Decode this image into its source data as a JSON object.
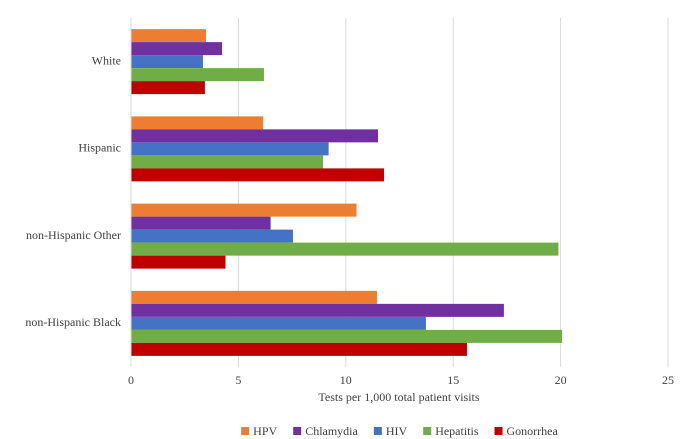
{
  "chart_data": {
    "type": "bar",
    "horizontal": true,
    "categories": [
      "White",
      "Hispanic",
      "non-Hispanic Other",
      "non-Hispanic Black"
    ],
    "series": [
      {
        "name": "HPV",
        "color": "#ed7d31",
        "values": [
          3.49,
          6.15,
          10.5,
          11.45
        ]
      },
      {
        "name": "Chlamydia",
        "color": "#7030a0",
        "values": [
          4.24,
          11.5,
          6.5,
          17.36
        ]
      },
      {
        "name": "HIV",
        "color": "#4472c4",
        "values": [
          3.35,
          9.2,
          7.54,
          13.73
        ]
      },
      {
        "name": "Hepatitis",
        "color": "#70ad47",
        "values": [
          6.19,
          8.94,
          19.9,
          20.07
        ]
      },
      {
        "name": "Gonorrhea",
        "color": "#c00000",
        "values": [
          3.44,
          11.78,
          4.4,
          15.64
        ]
      }
    ],
    "x_label": "Tests per 1,000 total patient visits",
    "xlim": [
      0,
      25
    ],
    "xticks": [
      0,
      5,
      10,
      15,
      20,
      25
    ],
    "grid": true,
    "legend": "bottom"
  }
}
